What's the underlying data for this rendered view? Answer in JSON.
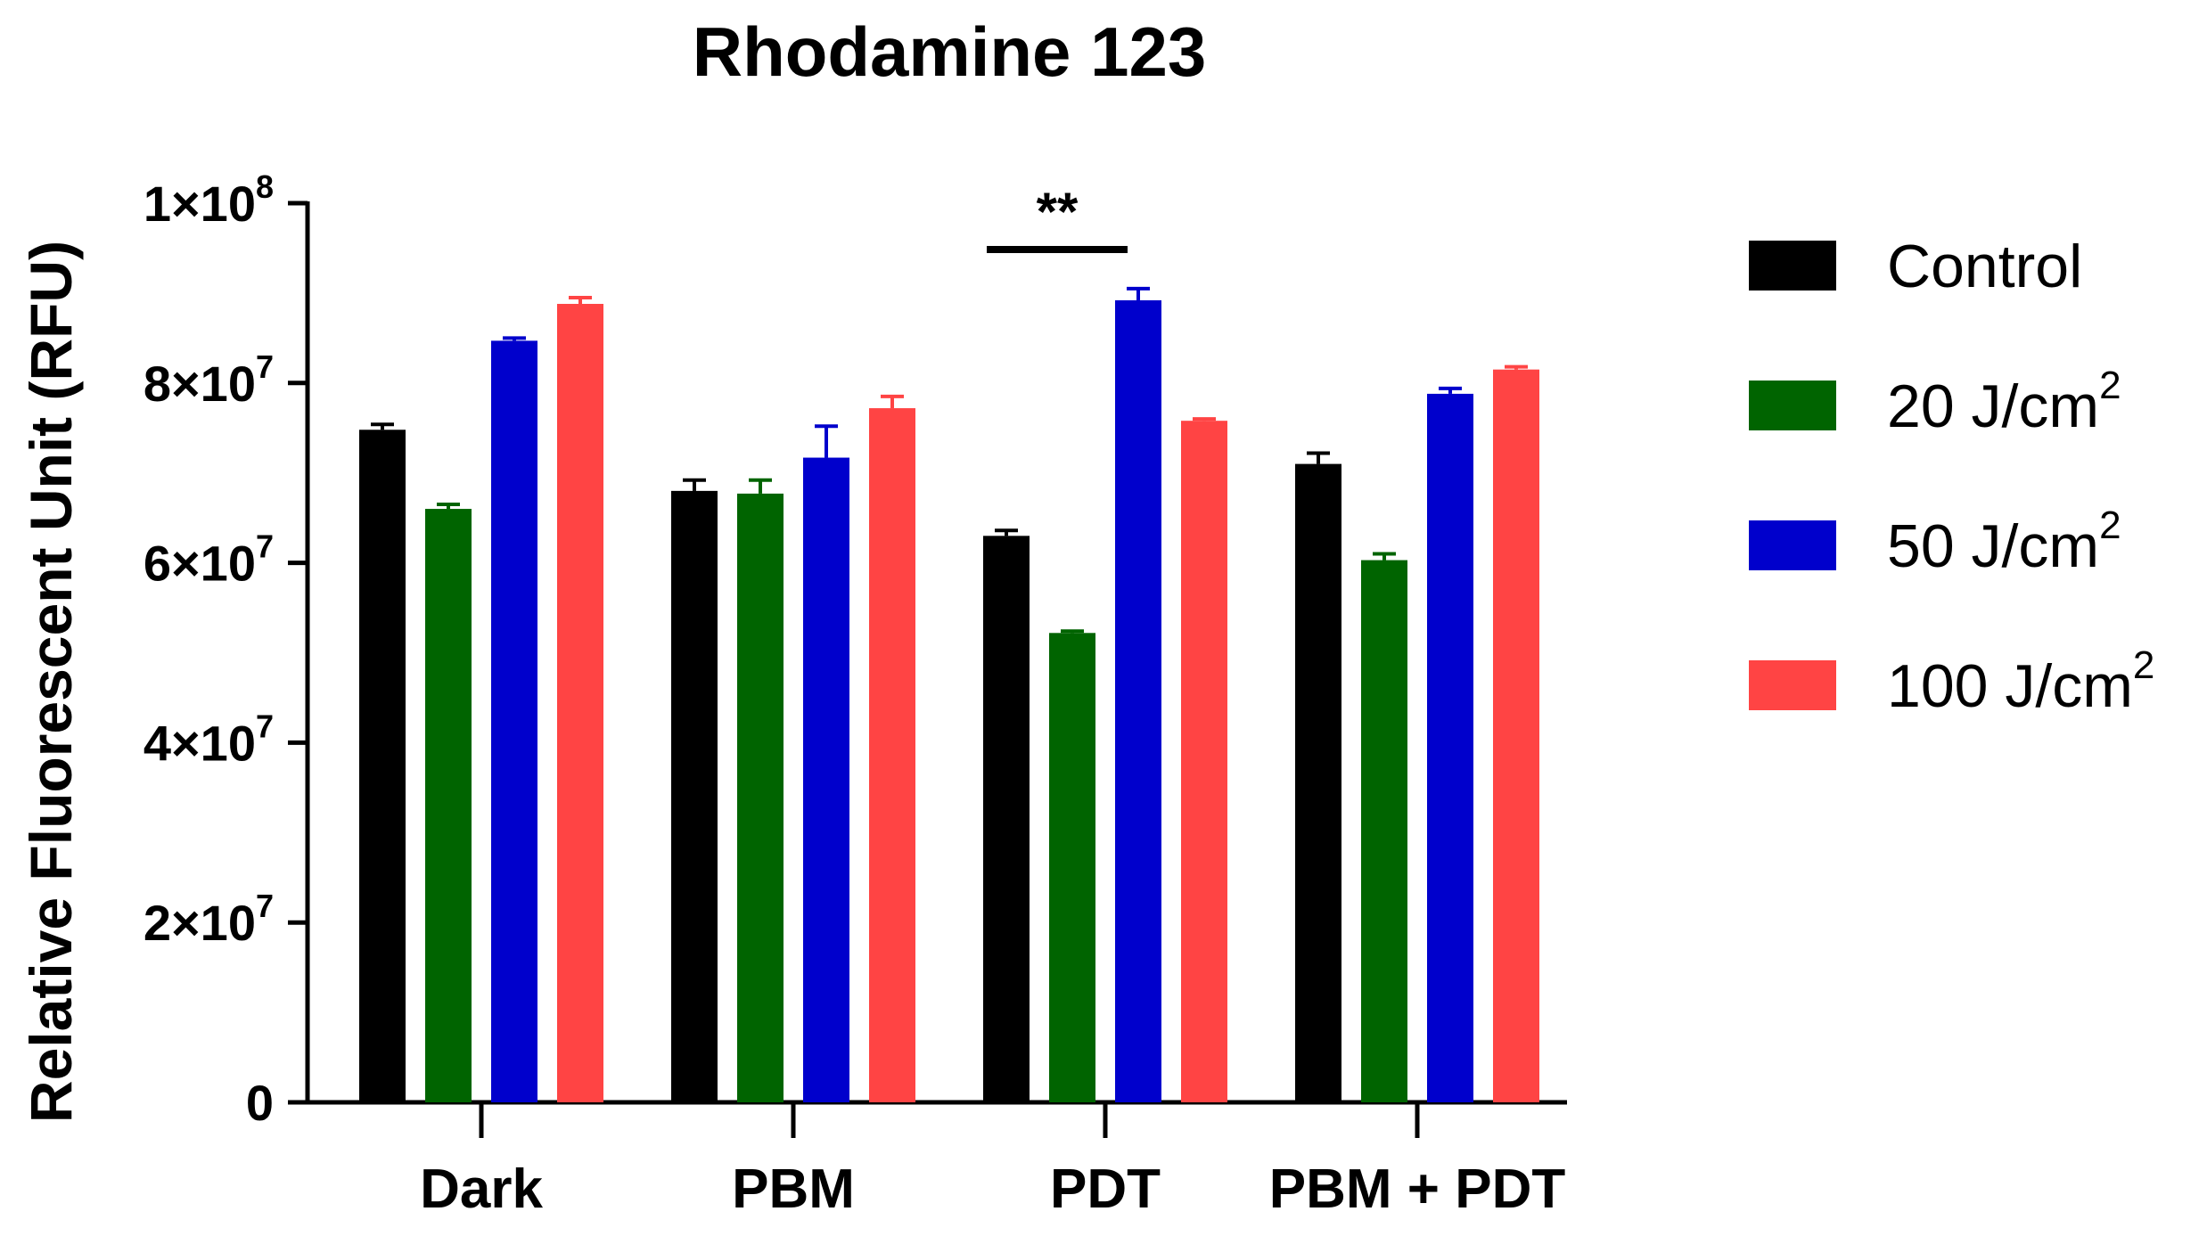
{
  "chart_data": {
    "type": "bar",
    "title": "Rhodamine 123",
    "ylabel": "Relative Fluorescent Unit (RFU)",
    "xlabel": "",
    "ylim": [
      0,
      100000000
    ],
    "yticks": [
      {
        "value": 0,
        "base": "0",
        "exp": ""
      },
      {
        "value": 20000000,
        "base": "2×10",
        "exp": "7"
      },
      {
        "value": 40000000,
        "base": "4×10",
        "exp": "7"
      },
      {
        "value": 60000000,
        "base": "6×10",
        "exp": "7"
      },
      {
        "value": 80000000,
        "base": "8×10",
        "exp": "7"
      },
      {
        "value": 100000000,
        "base": "1×10",
        "exp": "8"
      }
    ],
    "categories": [
      "Dark",
      "PBM",
      "PDT",
      "PBM + PDT"
    ],
    "series": [
      {
        "name": "Control",
        "legend_base": "Control",
        "legend_sup": "",
        "color": "#000000",
        "values": [
          74800000,
          68000000,
          63000000,
          71000000
        ],
        "errors": [
          600000,
          1200000,
          600000,
          1200000
        ]
      },
      {
        "name": "20 J/cm2",
        "legend_base": "20 J/cm",
        "legend_sup": "2",
        "color": "#006400",
        "values": [
          66000000,
          67700000,
          52200000,
          60300000
        ],
        "errors": [
          500000,
          1500000,
          200000,
          700000
        ]
      },
      {
        "name": "50 J/cm2",
        "legend_base": "50 J/cm",
        "legend_sup": "2",
        "color": "#0000cc",
        "values": [
          84700000,
          71700000,
          89200000,
          78800000
        ],
        "errors": [
          300000,
          3500000,
          1300000,
          600000
        ]
      },
      {
        "name": "100 J/cm2",
        "legend_base": "100 J/cm",
        "legend_sup": "2",
        "color": "#ff4444",
        "values": [
          88800000,
          77200000,
          75800000,
          81500000
        ],
        "errors": [
          700000,
          1300000,
          200000,
          300000
        ]
      }
    ],
    "annotations": [
      {
        "text": "**",
        "category": "PDT",
        "from_series": 0,
        "to_series": 2
      }
    ],
    "legend_placement": "right",
    "grid": false
  }
}
